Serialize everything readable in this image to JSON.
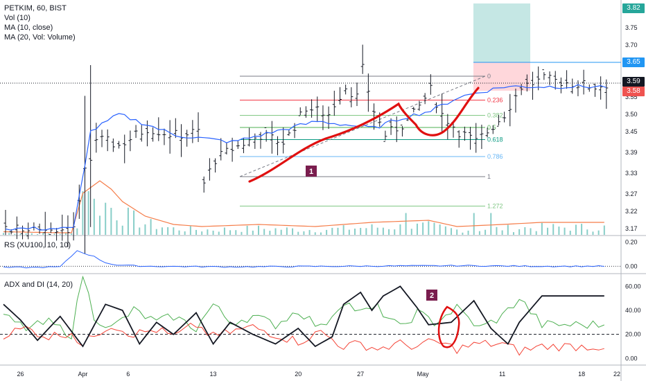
{
  "legend": {
    "symbol_line": "PETKIM, 60, BIST",
    "vol_line": "Vol (10)",
    "ma10_line": "MA (10, close)",
    "ma20_line": "MA (20, Vol: Volume)",
    "rs_line": "RS (XU100, 10, 10)",
    "adx_line": "ADX and DI (14, 20)"
  },
  "price_tags": [
    {
      "label": "3.82",
      "color": "#26a69a"
    },
    {
      "label": "3.65",
      "color": "#2196f3"
    },
    {
      "label": "3.59",
      "color": "#131722"
    },
    {
      "label": "3.58",
      "color": "#ef5350"
    }
  ],
  "colors": {
    "price_bar": "#131722",
    "ma10": "#2962ff",
    "volume": "#26a69a",
    "volume_ma": "#f57c48",
    "rs": "#2962ff",
    "adx": "#131722",
    "di_plus": "#4caf50",
    "di_minus": "#f44336",
    "annotation": "#e01010",
    "marker_badge": "#7a1d4e",
    "target_zone": "#b2dfdb",
    "stop_zone": "#ffcdd2"
  },
  "annotations": {
    "marker_1": "1",
    "marker_2": "2"
  },
  "chart_data": [
    {
      "type": "line",
      "title": "PETKIM, 60, BIST",
      "x_ticks": [
        "26",
        "Apr",
        "6",
        "13",
        "20",
        "27",
        "May",
        "11",
        "18",
        "22"
      ],
      "y_ticks": [
        "3.17",
        "3.22",
        "3.27",
        "3.33",
        "3.39",
        "3.45",
        "3.50",
        "3.55",
        "3.60",
        "3.65",
        "3.70",
        "3.75",
        "3.80"
      ],
      "ylim": [
        3.15,
        3.83
      ],
      "series": [
        {
          "name": "MA (10, close)",
          "x": [
            0,
            12,
            15,
            20,
            30,
            40,
            50,
            55,
            60,
            65,
            70,
            75,
            80,
            88,
            95
          ],
          "values": [
            3.17,
            3.17,
            3.45,
            3.5,
            3.44,
            3.42,
            3.46,
            3.48,
            3.47,
            3.46,
            3.49,
            3.51,
            3.55,
            3.58,
            3.58
          ]
        }
      ],
      "price_path": {
        "x": [
          0,
          12,
          14,
          16,
          20,
          25,
          30,
          34,
          35,
          37,
          40,
          45,
          49,
          50,
          53,
          57,
          58,
          60,
          62,
          63,
          65,
          67,
          70,
          72,
          75,
          77,
          80,
          83,
          85,
          88,
          91,
          95,
          100,
          104,
          107
        ],
        "values": [
          3.17,
          3.17,
          3.33,
          3.43,
          3.41,
          3.46,
          3.44,
          3.45,
          3.3,
          3.37,
          3.4,
          3.44,
          3.42,
          3.44,
          3.52,
          3.5,
          3.53,
          3.58,
          3.55,
          3.63,
          3.51,
          3.44,
          3.47,
          3.5,
          3.57,
          3.5,
          3.45,
          3.42,
          3.45,
          3.5,
          3.58,
          3.6,
          3.59,
          3.58,
          3.59
        ]
      },
      "fibonacci": [
        {
          "level": "0",
          "value": 3.61
        },
        {
          "level": "0.236",
          "value": 3.541
        },
        {
          "level": "0.382",
          "value": 3.497
        },
        {
          "level": "0.5",
          "value": 3.462
        },
        {
          "level": "0.618",
          "value": 3.427
        },
        {
          "level": "0.786",
          "value": 3.378
        },
        {
          "level": "1",
          "value": 3.32
        },
        {
          "level": "1.272",
          "value": 3.235
        }
      ],
      "position": {
        "entry": 3.59,
        "target": 3.82,
        "stop": 3.58,
        "marker_line": 3.65
      }
    },
    {
      "type": "bar",
      "title": "Vol (10)",
      "series": [
        {
          "name": "MA (20, Vol: Volume)",
          "x": [
            0,
            10,
            12,
            14,
            17,
            19,
            21,
            25,
            30,
            35,
            45,
            55,
            65,
            75,
            80,
            88,
            95
          ],
          "values": [
            3,
            2,
            2,
            40,
            52,
            44,
            32,
            18,
            10,
            8,
            10,
            8,
            12,
            14,
            8,
            10,
            12
          ]
        }
      ]
    },
    {
      "type": "line",
      "title": "RS (XU100, 10, 10)",
      "y_ticks": [
        "0.20",
        "0.00"
      ],
      "ylim": [
        -0.05,
        0.25
      ],
      "series": [
        {
          "name": "RS",
          "x": [
            0,
            5,
            10,
            13,
            16,
            18,
            20,
            25,
            40,
            60,
            80,
            95
          ],
          "values": [
            -0.01,
            -0.01,
            -0.005,
            0.13,
            0.08,
            0.03,
            0.01,
            0.0,
            -0.005,
            0.0,
            0.005,
            0.0
          ]
        }
      ]
    },
    {
      "type": "line",
      "title": "ADX and DI (14, 20)",
      "y_ticks": [
        "60.00",
        "40.00",
        "20.00",
        "0.00"
      ],
      "ylim": [
        -5,
        70
      ],
      "reference_line": 20,
      "series": [
        {
          "name": "ADX",
          "x": [
            0,
            3,
            6,
            10,
            14,
            18,
            21,
            24,
            27,
            30,
            34,
            37,
            40,
            44,
            48,
            52,
            55,
            58,
            60,
            63,
            65,
            67,
            70,
            73,
            75,
            79,
            83,
            86,
            89,
            91,
            95
          ],
          "values": [
            45,
            32,
            15,
            35,
            10,
            45,
            40,
            12,
            30,
            20,
            38,
            12,
            30,
            20,
            12,
            25,
            10,
            18,
            45,
            55,
            40,
            52,
            60,
            42,
            28,
            30,
            48,
            25,
            12,
            30,
            52
          ]
        },
        {
          "name": "DI+",
          "x": [
            0,
            4,
            8,
            12,
            14,
            16,
            19,
            23,
            27,
            30,
            34,
            37,
            40,
            44,
            48,
            52,
            56,
            60,
            63,
            66,
            70,
            73,
            76,
            80,
            84,
            88,
            91,
            95
          ],
          "values": [
            35,
            25,
            30,
            20,
            70,
            35,
            25,
            40,
            30,
            35,
            25,
            45,
            30,
            35,
            28,
            40,
            25,
            48,
            38,
            42,
            25,
            38,
            30,
            42,
            25,
            35,
            50,
            28
          ]
        },
        {
          "name": "DI-",
          "x": [
            0,
            4,
            8,
            12,
            14,
            16,
            19,
            23,
            27,
            30,
            34,
            37,
            40,
            44,
            48,
            52,
            56,
            60,
            63,
            66,
            70,
            73,
            76,
            80,
            84,
            88,
            91,
            95
          ],
          "values": [
            20,
            25,
            18,
            22,
            10,
            20,
            28,
            20,
            24,
            18,
            28,
            18,
            22,
            26,
            20,
            14,
            22,
            10,
            12,
            8,
            12,
            10,
            14,
            8,
            12,
            12,
            6,
            10
          ]
        }
      ]
    }
  ]
}
